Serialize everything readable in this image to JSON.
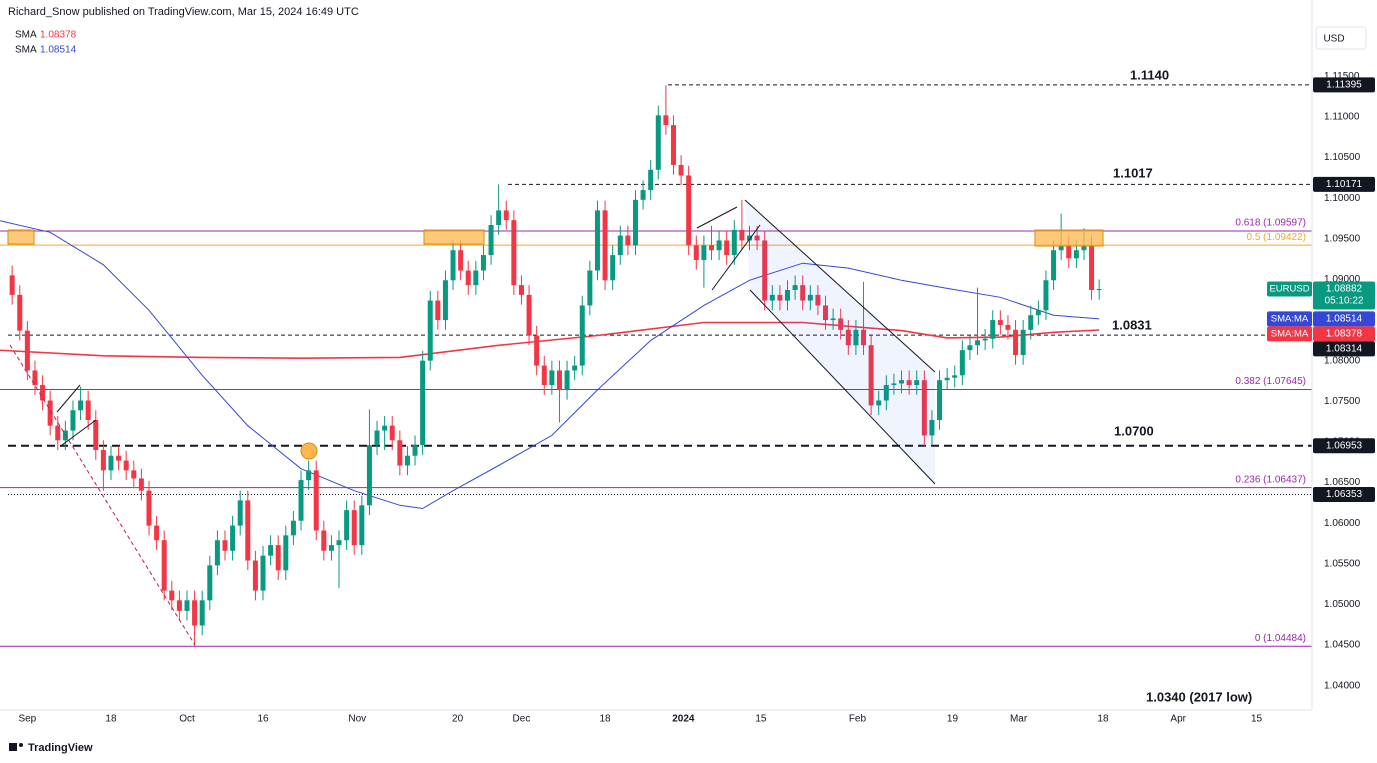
{
  "chart_data": {
    "type": "candlestick",
    "header": "Richard_Snow published on TradingView.com, Mar 15, 2024 16:49 UTC",
    "currency": "USD",
    "symbol": "EURUSD",
    "countdown": "05:10:22",
    "sma_tag": "SMA:MA",
    "brand": "TradingView",
    "up_color": "#089981",
    "down_color": "#f23645",
    "xlim": [
      -1.6,
      171
    ],
    "ylim": [
      1.037,
      1.1244
    ],
    "yticks": [
      {
        "value": 1.04,
        "label": "1.04000"
      },
      {
        "value": 1.045,
        "label": "1.04500"
      },
      {
        "value": 1.05,
        "label": "1.05000"
      },
      {
        "value": 1.055,
        "label": "1.05500"
      },
      {
        "value": 1.06,
        "label": "1.06000"
      },
      {
        "value": 1.065,
        "label": "1.06500"
      },
      {
        "value": 1.07,
        "label": "1.07000"
      },
      {
        "value": 1.075,
        "label": "1.07500"
      },
      {
        "value": 1.08,
        "label": "1.08000"
      },
      {
        "value": 1.085,
        "label": "1.08500"
      },
      {
        "value": 1.09,
        "label": "1.09000"
      },
      {
        "value": 1.095,
        "label": "1.09500"
      },
      {
        "value": 1.1,
        "label": "1.10000"
      },
      {
        "value": 1.105,
        "label": "1.10500"
      },
      {
        "value": 1.11,
        "label": "1.11000"
      },
      {
        "value": 1.115,
        "label": "1.11500"
      }
    ],
    "xticks": [
      {
        "value": 2,
        "label": "Sep"
      },
      {
        "value": 13,
        "label": "18"
      },
      {
        "value": 23,
        "label": "Oct"
      },
      {
        "value": 33,
        "label": "16"
      },
      {
        "value": 45.4,
        "label": "Nov"
      },
      {
        "value": 58.6,
        "label": "20"
      },
      {
        "value": 67,
        "label": "Dec"
      },
      {
        "value": 78,
        "label": "18"
      },
      {
        "value": 88.3,
        "label": "2024"
      },
      {
        "value": 98.5,
        "label": "15"
      },
      {
        "value": 111.2,
        "label": "Feb"
      },
      {
        "value": 123.7,
        "label": "19"
      },
      {
        "value": 132.4,
        "label": "Mar"
      },
      {
        "value": 143.5,
        "label": "18"
      },
      {
        "value": 153.4,
        "label": "Apr"
      },
      {
        "value": 163.7,
        "label": "15"
      }
    ],
    "ohlc": [
      [
        1.0905,
        1.0917,
        1.0869,
        1.0881
      ],
      [
        1.0881,
        1.0893,
        1.0825,
        1.0837
      ],
      [
        1.0837,
        1.0849,
        1.0776,
        1.0788
      ],
      [
        1.0788,
        1.08,
        1.0758,
        1.077
      ],
      [
        1.077,
        1.0782,
        1.0739,
        1.0751
      ],
      [
        1.0751,
        1.0763,
        1.0708,
        1.072
      ],
      [
        1.072,
        1.0732,
        1.069,
        1.0702
      ],
      [
        1.0702,
        1.0726,
        1.069,
        1.0714
      ],
      [
        1.0714,
        1.0751,
        1.0702,
        1.0739
      ],
      [
        1.0739,
        1.0768,
        1.0727,
        1.0751
      ],
      [
        1.0751,
        1.0763,
        1.0715,
        1.0727
      ],
      [
        1.0727,
        1.0739,
        1.0678,
        1.069
      ],
      [
        1.069,
        1.0702,
        1.064,
        1.0665
      ],
      [
        1.0665,
        1.0695,
        1.0653,
        1.0683
      ],
      [
        1.0683,
        1.0695,
        1.0665,
        1.0677
      ],
      [
        1.0677,
        1.0689,
        1.0653,
        1.0665
      ],
      [
        1.0665,
        1.0677,
        1.0643,
        1.0655
      ],
      [
        1.0655,
        1.0667,
        1.0628,
        1.064
      ],
      [
        1.064,
        1.0652,
        1.0585,
        1.0597
      ],
      [
        1.0597,
        1.0609,
        1.0567,
        1.0579
      ],
      [
        1.0579,
        1.0591,
        1.0505,
        1.0517
      ],
      [
        1.0517,
        1.0529,
        1.0493,
        1.0505
      ],
      [
        1.0505,
        1.0517,
        1.048,
        1.0492
      ],
      [
        1.0492,
        1.0517,
        1.048,
        1.0505
      ],
      [
        1.0505,
        1.0517,
        1.0448,
        1.0474
      ],
      [
        1.0474,
        1.0517,
        1.0462,
        1.0505
      ],
      [
        1.0505,
        1.056,
        1.0493,
        1.0548
      ],
      [
        1.0548,
        1.0591,
        1.0536,
        1.0579
      ],
      [
        1.0579,
        1.0591,
        1.0554,
        1.0566
      ],
      [
        1.0566,
        1.0609,
        1.0554,
        1.0597
      ],
      [
        1.0597,
        1.064,
        1.0585,
        1.0628
      ],
      [
        1.0628,
        1.064,
        1.0542,
        1.0554
      ],
      [
        1.0554,
        1.0566,
        1.0505,
        1.0517
      ],
      [
        1.0517,
        1.0572,
        1.0505,
        1.056
      ],
      [
        1.056,
        1.0585,
        1.0548,
        1.0573
      ],
      [
        1.0573,
        1.0585,
        1.053,
        1.0542
      ],
      [
        1.0542,
        1.0597,
        1.053,
        1.0585
      ],
      [
        1.0585,
        1.0615,
        1.0573,
        1.0603
      ],
      [
        1.0603,
        1.0665,
        1.0591,
        1.0653
      ],
      [
        1.0653,
        1.0677,
        1.0641,
        1.0665
      ],
      [
        1.0665,
        1.0677,
        1.0579,
        1.0591
      ],
      [
        1.0591,
        1.0603,
        1.0554,
        1.0566
      ],
      [
        1.0566,
        1.0585,
        1.0554,
        1.0573
      ],
      [
        1.0573,
        1.0591,
        1.052,
        1.0579
      ],
      [
        1.0579,
        1.0628,
        1.0567,
        1.0616
      ],
      [
        1.0616,
        1.0628,
        1.0561,
        1.0573
      ],
      [
        1.0573,
        1.0634,
        1.0561,
        1.0622
      ],
      [
        1.0622,
        1.074,
        1.061,
        1.0696
      ],
      [
        1.0696,
        1.0726,
        1.0684,
        1.0714
      ],
      [
        1.0714,
        1.0732,
        1.069,
        1.072
      ],
      [
        1.072,
        1.0732,
        1.069,
        1.0702
      ],
      [
        1.0702,
        1.0714,
        1.0659,
        1.0671
      ],
      [
        1.0671,
        1.0695,
        1.0659,
        1.0683
      ],
      [
        1.0683,
        1.0708,
        1.0671,
        1.0696
      ],
      [
        1.0696,
        1.0812,
        1.0684,
        1.08
      ],
      [
        1.08,
        1.0886,
        1.0788,
        1.0874
      ],
      [
        1.0874,
        1.0886,
        1.0838,
        1.085
      ],
      [
        1.085,
        1.0911,
        1.0838,
        1.0899
      ],
      [
        1.0899,
        1.0948,
        1.0887,
        1.0936
      ],
      [
        1.0936,
        1.0948,
        1.0899,
        1.0911
      ],
      [
        1.0911,
        1.0923,
        1.0881,
        1.0893
      ],
      [
        1.0893,
        1.0923,
        1.0881,
        1.0911
      ],
      [
        1.0911,
        1.0942,
        1.0899,
        1.093
      ],
      [
        1.093,
        1.0979,
        1.0918,
        1.0967
      ],
      [
        1.0967,
        1.1017,
        1.0955,
        1.0985
      ],
      [
        1.0985,
        1.0997,
        1.0961,
        1.0973
      ],
      [
        1.0973,
        1.0985,
        1.0881,
        1.0893
      ],
      [
        1.0893,
        1.0905,
        1.0869,
        1.0881
      ],
      [
        1.0881,
        1.0893,
        1.0819,
        1.0831
      ],
      [
        1.0831,
        1.0843,
        1.0782,
        1.0794
      ],
      [
        1.0794,
        1.0806,
        1.0758,
        1.077
      ],
      [
        1.077,
        1.08,
        1.0758,
        1.0788
      ],
      [
        1.0788,
        1.08,
        1.0724,
        1.0764
      ],
      [
        1.0764,
        1.08,
        1.0752,
        1.0788
      ],
      [
        1.0788,
        1.0806,
        1.0776,
        1.0794
      ],
      [
        1.0794,
        1.088,
        1.0782,
        1.0868
      ],
      [
        1.0868,
        1.0923,
        1.0856,
        1.0911
      ],
      [
        1.0911,
        1.0997,
        1.0899,
        1.0985
      ],
      [
        1.0985,
        1.0997,
        1.0887,
        1.0899
      ],
      [
        1.0899,
        1.0942,
        1.0887,
        1.093
      ],
      [
        1.093,
        1.0966,
        1.0918,
        1.0954
      ],
      [
        1.0954,
        1.0966,
        1.093,
        1.0942
      ],
      [
        1.0942,
        1.101,
        1.093,
        1.0998
      ],
      [
        1.0998,
        1.1022,
        1.0986,
        1.101
      ],
      [
        1.101,
        1.1047,
        1.0998,
        1.1035
      ],
      [
        1.1035,
        1.1114,
        1.1023,
        1.1102
      ],
      [
        1.1102,
        1.1139,
        1.1078,
        1.109
      ],
      [
        1.109,
        1.1102,
        1.1029,
        1.1041
      ],
      [
        1.1041,
        1.1053,
        1.1016,
        1.1028
      ],
      [
        1.1028,
        1.104,
        1.093,
        1.0942
      ],
      [
        1.0942,
        1.0954,
        1.0912,
        1.0924
      ],
      [
        1.0924,
        1.0954,
        1.089,
        1.0942
      ],
      [
        1.0942,
        1.0966,
        1.0924,
        1.0936
      ],
      [
        1.0936,
        1.096,
        1.0924,
        1.0948
      ],
      [
        1.0948,
        1.096,
        1.0918,
        1.093
      ],
      [
        1.093,
        1.0973,
        1.0918,
        1.0961
      ],
      [
        1.0961,
        1.0998,
        1.0936,
        1.0948
      ],
      [
        1.0948,
        1.0966,
        1.0936,
        1.0954
      ],
      [
        1.0954,
        1.0966,
        1.0936,
        1.0948
      ],
      [
        1.0948,
        1.096,
        1.0862,
        1.0874
      ],
      [
        1.0874,
        1.0893,
        1.0862,
        1.0881
      ],
      [
        1.0881,
        1.0893,
        1.0862,
        1.0874
      ],
      [
        1.0874,
        1.0899,
        1.0862,
        1.0887
      ],
      [
        1.0887,
        1.0905,
        1.0875,
        1.0893
      ],
      [
        1.0893,
        1.0905,
        1.0862,
        1.0874
      ],
      [
        1.0874,
        1.0893,
        1.0862,
        1.0881
      ],
      [
        1.0881,
        1.0893,
        1.0856,
        1.0868
      ],
      [
        1.0868,
        1.088,
        1.0838,
        1.085
      ],
      [
        1.085,
        1.0864,
        1.0838,
        1.0852
      ],
      [
        1.0852,
        1.0864,
        1.0826,
        1.0838
      ],
      [
        1.0838,
        1.085,
        1.0807,
        1.0819
      ],
      [
        1.0819,
        1.085,
        1.0807,
        1.0838
      ],
      [
        1.0838,
        1.0897,
        1.0807,
        1.0819
      ],
      [
        1.0819,
        1.0831,
        1.0733,
        1.0745
      ],
      [
        1.0745,
        1.0763,
        1.0733,
        1.0751
      ],
      [
        1.0751,
        1.0782,
        1.0739,
        1.077
      ],
      [
        1.077,
        1.0784,
        1.0758,
        1.0772
      ],
      [
        1.0772,
        1.0788,
        1.076,
        1.0776
      ],
      [
        1.0776,
        1.0788,
        1.0758,
        1.077
      ],
      [
        1.077,
        1.0788,
        1.0758,
        1.0776
      ],
      [
        1.0776,
        1.0788,
        1.0695,
        1.0708
      ],
      [
        1.0708,
        1.0739,
        1.0696,
        1.0727
      ],
      [
        1.0727,
        1.0788,
        1.0715,
        1.0776
      ],
      [
        1.0776,
        1.0791,
        1.0764,
        1.0779
      ],
      [
        1.0779,
        1.0794,
        1.0767,
        1.0782
      ],
      [
        1.0782,
        1.0825,
        1.077,
        1.0813
      ],
      [
        1.0813,
        1.0831,
        1.0801,
        1.0819
      ],
      [
        1.0819,
        1.089,
        1.0807,
        1.0825
      ],
      [
        1.0825,
        1.0839,
        1.0813,
        1.0827
      ],
      [
        1.0827,
        1.0862,
        1.0815,
        1.085
      ],
      [
        1.085,
        1.0862,
        1.0832,
        1.0844
      ],
      [
        1.0844,
        1.0856,
        1.0826,
        1.0838
      ],
      [
        1.0838,
        1.085,
        1.0795,
        1.0807
      ],
      [
        1.0807,
        1.085,
        1.0795,
        1.0838
      ],
      [
        1.0838,
        1.0868,
        1.0826,
        1.0856
      ],
      [
        1.0856,
        1.0874,
        1.0844,
        1.0862
      ],
      [
        1.0862,
        1.0911,
        1.085,
        1.0899
      ],
      [
        1.0899,
        1.0948,
        1.0887,
        1.0936
      ],
      [
        1.0936,
        1.0981,
        1.0924,
        1.0942
      ],
      [
        1.0942,
        1.0954,
        1.0914,
        1.0926
      ],
      [
        1.0926,
        1.0948,
        1.0914,
        1.0936
      ],
      [
        1.0936,
        1.0963,
        1.0924,
        1.0942
      ],
      [
        1.0942,
        1.0954,
        1.0875,
        1.0887
      ],
      [
        1.0887,
        1.09,
        1.0875,
        1.08882
      ]
    ],
    "sma": [
      {
        "name": "SMA",
        "color": "#f23645",
        "x": [
          -2,
          12,
          25,
          38,
          51,
          64,
          77,
          91,
          104,
          117,
          123,
          130,
          137,
          143
        ],
        "values": [
          1.0813,
          1.0806,
          1.0804,
          1.0803,
          1.0804,
          1.0819,
          1.0831,
          1.0847,
          1.0847,
          1.0837,
          1.0828,
          1.0829,
          1.0835,
          1.08378
        ]
      },
      {
        "name": "SMA",
        "color": "#3447d8",
        "x": [
          -2,
          5,
          12,
          18,
          25,
          31,
          38,
          45,
          51,
          54,
          58,
          64,
          71,
          77,
          84,
          91,
          97,
          104,
          110,
          117,
          123,
          130,
          137,
          143
        ],
        "values": [
          1.0973,
          1.0958,
          1.0918,
          1.0862,
          1.0782,
          1.072,
          1.0667,
          1.064,
          1.0622,
          1.0618,
          1.064,
          1.0671,
          1.0708,
          1.0764,
          1.0825,
          1.0868,
          1.0899,
          1.092,
          1.0914,
          1.0899,
          1.0889,
          1.0878,
          1.0856,
          1.08514
        ]
      }
    ],
    "levels": [
      {
        "value": 1.11395,
        "style": "dashed"
      },
      {
        "value": 1.10171,
        "style": "dashed"
      },
      {
        "value": 1.08314,
        "style": "dashed"
      },
      {
        "value": 1.06953,
        "style": "thick"
      },
      {
        "value": 1.06353,
        "style": "dotted"
      }
    ],
    "fib": [
      {
        "value": 1.09597,
        "label": "0.618 (1.09597)",
        "color": "#9c27b0"
      },
      {
        "value": 1.09422,
        "label": "0.5 (1.09422)",
        "color": "#f5a623"
      },
      {
        "value": 1.07645,
        "label": "0.382 (1.07645)",
        "color": "#9c27b0"
      },
      {
        "value": 1.06437,
        "label": "0.236 (1.06437)",
        "color": "#9c27b0"
      },
      {
        "value": 1.04484,
        "label": "0 (1.04484)",
        "color": "#9c27b0"
      }
    ],
    "annotations": [
      "1.1140",
      "1.1017",
      "1.0831",
      "1.0700",
      "1.0340 (2017 low)"
    ]
  }
}
